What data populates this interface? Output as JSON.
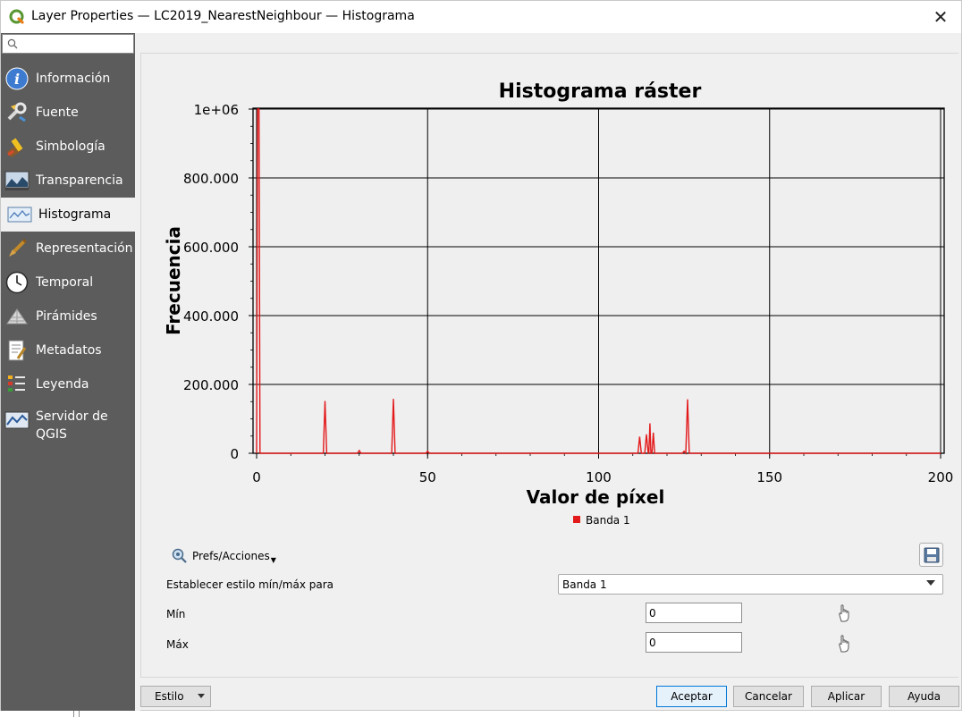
{
  "window": {
    "title": "Layer Properties — LC2019_NearestNeighbour — Histograma",
    "close_glyph": "✕"
  },
  "sidebar": {
    "search_placeholder": "",
    "items": [
      {
        "label": "Información",
        "icon": "info-icon"
      },
      {
        "label": "Fuente",
        "icon": "source-icon"
      },
      {
        "label": "Simbología",
        "icon": "symbology-icon"
      },
      {
        "label": "Transparencia",
        "icon": "transparency-icon"
      },
      {
        "label": "Histograma",
        "icon": "histogram-icon",
        "active": true
      },
      {
        "label": "Representación",
        "icon": "rendering-icon"
      },
      {
        "label": "Temporal",
        "icon": "clock-icon"
      },
      {
        "label": "Pirámides",
        "icon": "pyramids-icon"
      },
      {
        "label": "Metadatos",
        "icon": "metadata-icon"
      },
      {
        "label": "Leyenda",
        "icon": "legend-icon"
      },
      {
        "label": "Servidor de QGIS",
        "icon": "server-icon"
      }
    ]
  },
  "chart_data": {
    "type": "line",
    "title": "Histograma ráster",
    "xlabel": "Valor de píxel",
    "ylabel": "Frecuencia",
    "xlim": [
      0,
      200
    ],
    "ylim": [
      0,
      1000000
    ],
    "x_ticks": [
      0,
      50,
      100,
      150,
      200
    ],
    "y_ticks": [
      0,
      200000,
      400000,
      600000,
      800000,
      1000000
    ],
    "y_tick_labels": [
      "0",
      "200.000",
      "400.000",
      "600.000",
      "800.000",
      "1e+06"
    ],
    "grid": true,
    "legend_position": "bottom",
    "series": [
      {
        "name": "Banda 1",
        "color": "#e31a1c",
        "points": [
          [
            0,
            0
          ],
          [
            0.3,
            1000000
          ],
          [
            0.7,
            1000000
          ],
          [
            1,
            0
          ],
          [
            19.5,
            0
          ],
          [
            20,
            152000
          ],
          [
            20.5,
            0
          ],
          [
            29.5,
            0
          ],
          [
            30,
            8000
          ],
          [
            30.5,
            0
          ],
          [
            39.5,
            0
          ],
          [
            40,
            158000
          ],
          [
            40.5,
            0
          ],
          [
            49.5,
            0
          ],
          [
            50,
            6000
          ],
          [
            50.5,
            0
          ],
          [
            111.5,
            0
          ],
          [
            112,
            48000
          ],
          [
            112.5,
            0
          ],
          [
            113.5,
            0
          ],
          [
            114,
            55000
          ],
          [
            114.5,
            0
          ],
          [
            114.7,
            0
          ],
          [
            115,
            87000
          ],
          [
            115.3,
            0
          ],
          [
            115.6,
            0
          ],
          [
            116,
            60000
          ],
          [
            116.4,
            0
          ],
          [
            124.5,
            0
          ],
          [
            125,
            6000
          ],
          [
            125.5,
            0
          ],
          [
            125.5,
            0
          ],
          [
            126,
            157000
          ],
          [
            126.5,
            0
          ],
          [
            200,
            0
          ]
        ]
      }
    ]
  },
  "controls": {
    "prefs_label": "Prefs/Acciones",
    "minmax_label": "Establecer estilo mín/máx para",
    "band_selected": "Banda 1",
    "min_label": "Mín",
    "min_value": "0",
    "max_label": "Máx",
    "max_value": "0"
  },
  "footer": {
    "style_label": "Estilo",
    "ok_label": "Aceptar",
    "cancel_label": "Cancelar",
    "apply_label": "Aplicar",
    "help_label": "Ayuda"
  }
}
